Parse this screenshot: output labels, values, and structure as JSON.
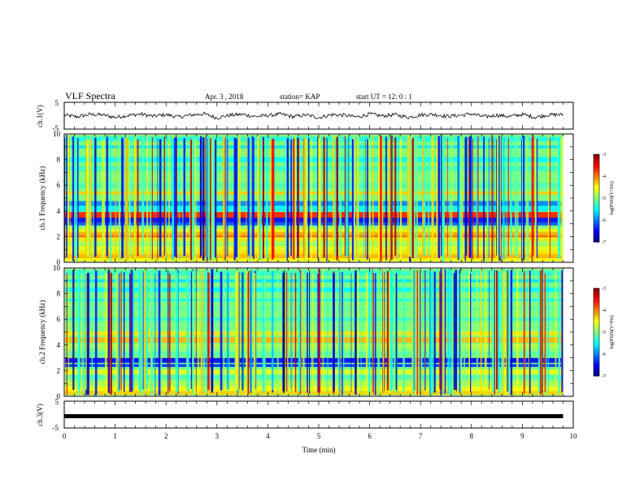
{
  "header": {
    "title": "VLF Spectra",
    "date": "Apr. 3 , 2018",
    "station": "station= KAP",
    "start": "start  UT =  12: 0  : 1"
  },
  "chart_data": [
    {
      "type": "line",
      "name_panel": "ch.1",
      "ylabel": "ch.1(V)",
      "ylim": [
        -5,
        5
      ],
      "yticks": [
        "5",
        "-5"
      ],
      "x_unit": "min",
      "xlim": [
        0,
        10
      ],
      "data_span_min": [
        0,
        9.8
      ],
      "note_values": "voltage trace fluctuating roughly between -1 and +1 V around 0",
      "x": [
        0,
        0.25,
        0.5,
        0.75,
        1.0,
        1.25,
        1.5,
        1.75,
        2.0,
        2.25,
        2.5,
        2.75,
        3.0,
        3.25,
        3.5,
        3.75,
        4.0,
        4.25,
        4.5,
        4.75,
        5.0,
        5.25,
        5.5,
        5.75,
        6.0,
        6.25,
        6.5,
        6.75,
        7.0,
        7.25,
        7.5,
        7.75,
        8.0,
        8.25,
        8.5,
        8.75,
        9.0,
        9.25,
        9.5,
        9.8
      ],
      "values": [
        0.2,
        -0.4,
        0.5,
        0.3,
        -0.6,
        0.1,
        0.6,
        -0.2,
        0.4,
        -0.5,
        0.3,
        0.7,
        -0.8,
        0.2,
        0.5,
        -0.3,
        0.1,
        0.6,
        -0.4,
        0.3,
        -0.7,
        0.4,
        0.2,
        -0.5,
        0.6,
        -0.1,
        0.4,
        -0.6,
        0.3,
        0.5,
        -0.2,
        0.1,
        0.7,
        -0.4,
        0.2,
        -0.3,
        0.5,
        -0.6,
        0.3,
        0.4
      ]
    },
    {
      "type": "heatmap",
      "ylabel": "ch.1 Frequency (kHz)",
      "ylim": [
        0,
        10
      ],
      "yticks": [
        "0",
        "2",
        "4",
        "6",
        "8",
        "10"
      ],
      "xlim": [
        0,
        10
      ],
      "data_span_min": [
        0,
        9.8
      ],
      "colorbar": {
        "label": "log(PSD)(V²/Hz)",
        "range": [
          -7,
          -3
        ],
        "ticks": [
          "-3",
          "-4",
          "-5",
          "-6",
          "-7"
        ]
      },
      "bands_khz": [
        {
          "f": 0.2,
          "level": -4.5
        },
        {
          "f": 0.5,
          "level": -4.2
        },
        {
          "f": 0.8,
          "level": -4.4
        },
        {
          "f": 1.1,
          "level": -4.6
        },
        {
          "f": 1.5,
          "level": -4.8
        },
        {
          "f": 1.8,
          "level": -4.4
        },
        {
          "f": 2.1,
          "level": -3.8
        },
        {
          "f": 2.3,
          "level": -4.2
        },
        {
          "f": 2.5,
          "level": -4.6
        },
        {
          "f": 3.0,
          "level": -6.2
        },
        {
          "f": 3.3,
          "level": -6.5
        },
        {
          "f": 3.7,
          "level": -3.6
        },
        {
          "f": 4.2,
          "level": -5.5
        },
        {
          "f": 4.6,
          "level": -6.0
        },
        {
          "f": 5.0,
          "level": -5.0
        },
        {
          "f": 5.4,
          "level": -4.3
        },
        {
          "f": 6.0,
          "level": -5.2
        },
        {
          "f": 6.6,
          "level": -5.0
        },
        {
          "f": 7.3,
          "level": -5.3
        },
        {
          "f": 8.0,
          "level": -5.5
        },
        {
          "f": 9.0,
          "level": -5.6
        },
        {
          "f": 9.6,
          "level": -5.4
        }
      ]
    },
    {
      "type": "heatmap",
      "ylabel": "ch.2 Frequency (kHz)",
      "ylim": [
        0,
        10
      ],
      "yticks": [
        "0",
        "2",
        "4",
        "6",
        "8",
        "10"
      ],
      "xlim": [
        0,
        10
      ],
      "data_span_min": [
        0,
        9.8
      ],
      "colorbar": {
        "label": "log(PSD)(V²/Hz)",
        "range": [
          -7,
          -3
        ],
        "ticks": [
          "-3",
          "-4",
          "-5",
          "-6",
          "-7"
        ]
      },
      "bands_khz": [
        {
          "f": 0.3,
          "level": -4.3
        },
        {
          "f": 0.6,
          "level": -4.5
        },
        {
          "f": 1.0,
          "level": -4.8
        },
        {
          "f": 1.5,
          "level": -5.2
        },
        {
          "f": 1.9,
          "level": -4.6
        },
        {
          "f": 2.4,
          "level": -6.3
        },
        {
          "f": 2.8,
          "level": -6.5
        },
        {
          "f": 3.3,
          "level": -5.2
        },
        {
          "f": 3.9,
          "level": -4.8
        },
        {
          "f": 4.4,
          "level": -4.2
        },
        {
          "f": 4.9,
          "level": -4.4
        },
        {
          "f": 5.4,
          "level": -5.0
        },
        {
          "f": 6.0,
          "level": -5.3
        },
        {
          "f": 6.8,
          "level": -5.1
        },
        {
          "f": 7.5,
          "level": -5.4
        },
        {
          "f": 8.3,
          "level": -5.5
        },
        {
          "f": 9.0,
          "level": -5.6
        },
        {
          "f": 9.6,
          "level": -5.3
        }
      ]
    },
    {
      "type": "line",
      "ylabel": "ch.3(V)",
      "ylim": [
        -5,
        5
      ],
      "yticks": [
        "5",
        "-5"
      ],
      "xlabel": "Time  (min)",
      "xlim": [
        0,
        10
      ],
      "xticks": [
        "0",
        "1",
        "2",
        "3",
        "4",
        "5",
        "6",
        "7",
        "8",
        "9",
        "10"
      ],
      "data_span_min": [
        0,
        9.8
      ],
      "constant_value": 0
    }
  ]
}
